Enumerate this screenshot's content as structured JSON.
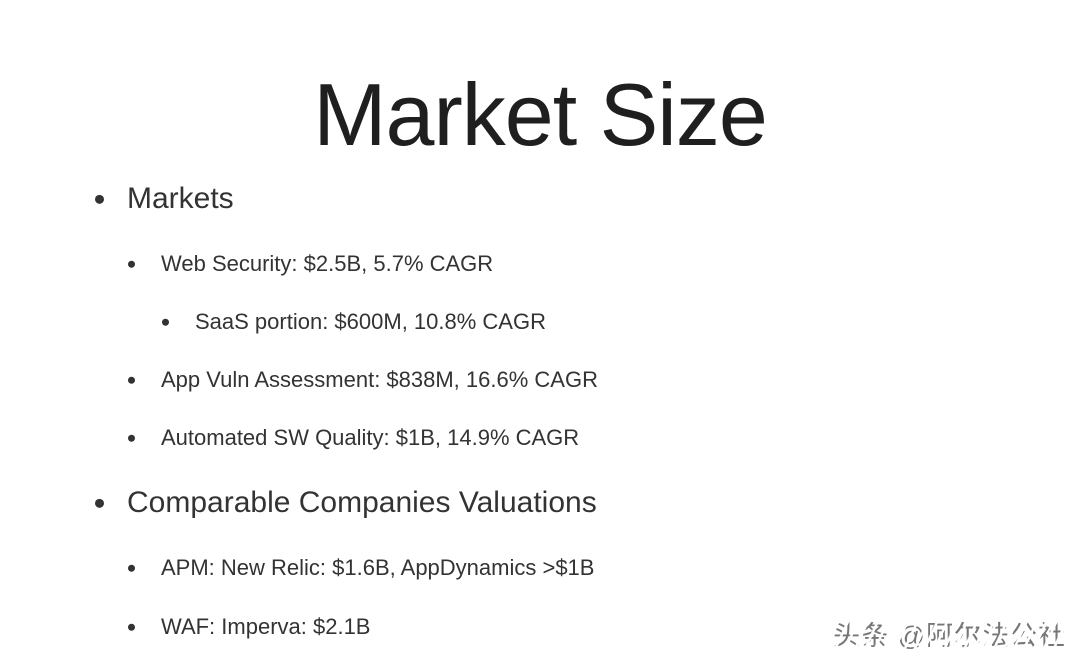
{
  "slide": {
    "title": "Market Size",
    "bullets": [
      {
        "level": 1,
        "text": "Markets"
      },
      {
        "level": 2,
        "text": "Web Security: $2.5B, 5.7% CAGR"
      },
      {
        "level": 3,
        "text": "SaaS portion: $600M, 10.8% CAGR"
      },
      {
        "level": 2,
        "text": "App Vuln Assessment: $838M, 16.6% CAGR"
      },
      {
        "level": 2,
        "text": "Automated SW Quality: $1B, 14.9% CAGR"
      },
      {
        "level": 1,
        "text": "Comparable Companies Valuations"
      },
      {
        "level": 2,
        "text": "APM: New Relic: $1.6B, AppDynamics >$1B"
      },
      {
        "level": 2,
        "text": "WAF: Imperva: $2.1B"
      }
    ]
  },
  "watermark": {
    "text": "头条 @阿尔法公社"
  },
  "colors": {
    "background": "#ffffff",
    "title": "#1f1f1f",
    "body": "#333333",
    "watermark": "#767676"
  }
}
